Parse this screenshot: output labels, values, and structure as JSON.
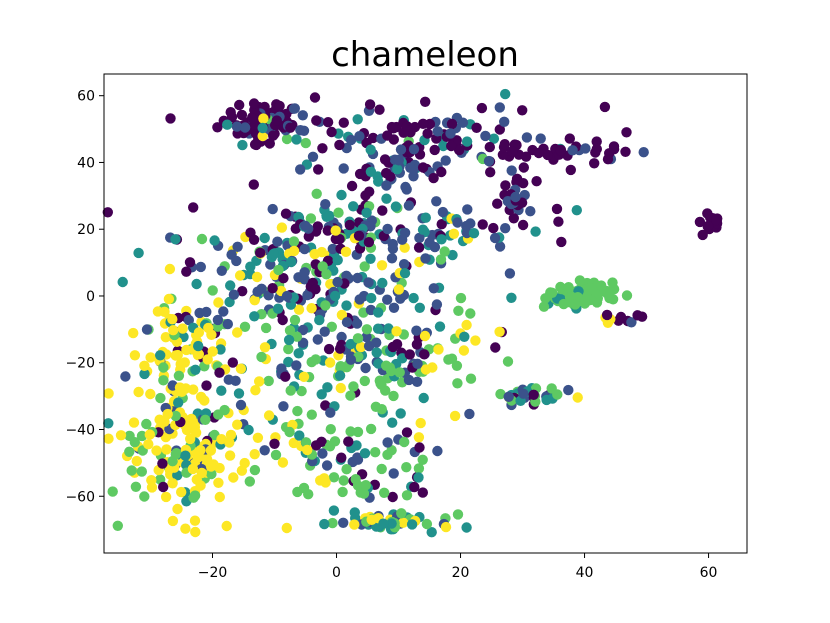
{
  "chart_data": {
    "type": "scatter",
    "title": "chameleon",
    "xlabel": "",
    "ylabel": "",
    "xlim": [
      -37.5,
      66.2
    ],
    "ylim": [
      -77,
      66.5
    ],
    "xticks": [
      -20,
      0,
      20,
      40,
      60
    ],
    "yticks": [
      60,
      40,
      20,
      0,
      -20,
      -40,
      -60
    ],
    "xtick_labels": [
      "−20",
      "0",
      "20",
      "40",
      "60"
    ],
    "ytick_labels": [
      "60",
      "40",
      "20",
      "0",
      "−20",
      "−40",
      "−60"
    ],
    "grid": false,
    "legend": "none",
    "colors": [
      "#440154",
      "#3b528b",
      "#21918c",
      "#5ec962",
      "#fde725"
    ],
    "clusters": [
      {
        "cx": -12,
        "cy": 52,
        "sx": 3.5,
        "sy": 2.8,
        "n": 90,
        "w": [
          0.55,
          0.3,
          0.05,
          0.05,
          0.05
        ]
      },
      {
        "cx": 15,
        "cy": 48,
        "sx": 12,
        "sy": 4.5,
        "n": 110,
        "w": [
          0.6,
          0.25,
          0.1,
          0.03,
          0.02
        ]
      },
      {
        "cx": 7,
        "cy": 38,
        "sx": 6,
        "sy": 3,
        "n": 45,
        "w": [
          0.3,
          0.5,
          0.15,
          0.05,
          0
        ]
      },
      {
        "cx": 35,
        "cy": 42,
        "sx": 5,
        "sy": 3,
        "n": 30,
        "w": [
          0.8,
          0.15,
          0.05,
          0,
          0
        ]
      },
      {
        "cx": 29,
        "cy": 28,
        "sx": 2,
        "sy": 5,
        "n": 25,
        "w": [
          0.6,
          0.3,
          0.1,
          0,
          0
        ]
      },
      {
        "cx": 60,
        "cy": 22,
        "sx": 0.9,
        "sy": 1.3,
        "n": 15,
        "w": [
          1,
          0,
          0,
          0,
          0
        ]
      },
      {
        "cx": 3,
        "cy": 20,
        "sx": 14,
        "sy": 5,
        "n": 150,
        "w": [
          0.25,
          0.35,
          0.25,
          0.1,
          0.05
        ]
      },
      {
        "cx": -5,
        "cy": 2,
        "sx": 12,
        "sy": 9,
        "n": 200,
        "w": [
          0.15,
          0.3,
          0.25,
          0.2,
          0.1
        ]
      },
      {
        "cx": 5,
        "cy": -20,
        "sx": 10,
        "sy": 9,
        "n": 160,
        "w": [
          0.1,
          0.15,
          0.25,
          0.4,
          0.1
        ]
      },
      {
        "cx": -24,
        "cy": -18,
        "sx": 5,
        "sy": 9,
        "n": 90,
        "w": [
          0.05,
          0.1,
          0.1,
          0.15,
          0.6
        ]
      },
      {
        "cx": -24,
        "cy": -45,
        "sx": 6,
        "sy": 10,
        "n": 180,
        "w": [
          0.03,
          0.07,
          0.1,
          0.15,
          0.65
        ]
      },
      {
        "cx": 3,
        "cy": -50,
        "sx": 7,
        "sy": 6,
        "n": 80,
        "w": [
          0.15,
          0.2,
          0.2,
          0.35,
          0.1
        ]
      },
      {
        "cx": 7,
        "cy": -68,
        "sx": 5,
        "sy": 1.3,
        "n": 50,
        "w": [
          0,
          0.15,
          0.3,
          0.25,
          0.3
        ]
      },
      {
        "cx": 39,
        "cy": 0,
        "sx": 2.5,
        "sy": 2.3,
        "n": 85,
        "w": [
          0,
          0,
          0.1,
          0.9,
          0
        ]
      },
      {
        "cx": 46,
        "cy": -7,
        "sx": 1.6,
        "sy": 0.7,
        "n": 10,
        "w": [
          0.4,
          0.1,
          0,
          0.1,
          0.4
        ]
      },
      {
        "cx": 33,
        "cy": -30,
        "sx": 3,
        "sy": 1.3,
        "n": 35,
        "w": [
          0.1,
          0.3,
          0.2,
          0.3,
          0.1
        ]
      }
    ]
  }
}
